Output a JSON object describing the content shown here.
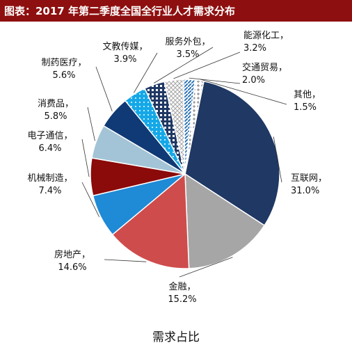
{
  "header": {
    "title": "图表：2017 年第二季度全国全行业人才需求分布"
  },
  "footer": {
    "caption": "需求占比"
  },
  "colors": {
    "title_bar": "#8e0f0f"
  },
  "chart_data": {
    "type": "pie",
    "title": "需求占比",
    "unit": "%",
    "slices": [
      {
        "name": "互联网",
        "value": 31.0,
        "label": "31.0%",
        "color": "#1f3864",
        "pattern": "solid"
      },
      {
        "name": "金融",
        "value": 15.2,
        "label": "15.2%",
        "color": "#a6a6a6",
        "pattern": "solid"
      },
      {
        "name": "房地产",
        "value": 14.6,
        "label": "14.6%",
        "color": "#cf4c4c",
        "pattern": "solid"
      },
      {
        "name": "机械制造",
        "value": 7.4,
        "label": "7.4%",
        "color": "#1f8ad6",
        "pattern": "solid"
      },
      {
        "name": "电子通信",
        "value": 6.4,
        "label": "6.4%",
        "color": "#8b0a0a",
        "pattern": "solid"
      },
      {
        "name": "消费品",
        "value": 5.8,
        "label": "5.8%",
        "color": "#a3c4d6",
        "pattern": "solid"
      },
      {
        "name": "制药医疗",
        "value": 5.6,
        "label": "5.6%",
        "color": "#0f3a75",
        "pattern": "solid"
      },
      {
        "name": "文教传媒",
        "value": 3.9,
        "label": "3.9%",
        "color": "#14a8e8",
        "pattern": "dots"
      },
      {
        "name": "服务外包",
        "value": 3.5,
        "label": "3.5%",
        "color": "#1f3864",
        "pattern": "grid"
      },
      {
        "name": "能源化工",
        "value": 3.2,
        "label": "3.2%",
        "color": "#bfbfbf",
        "pattern": "crosshatch"
      },
      {
        "name": "交通贸易",
        "value": 2.0,
        "label": "2.0%",
        "color": "#2e75b6",
        "pattern": "stripes"
      },
      {
        "name": "其他",
        "value": 1.5,
        "label": "1.5%",
        "color": "#7f7f7f",
        "pattern": "plus"
      }
    ]
  }
}
